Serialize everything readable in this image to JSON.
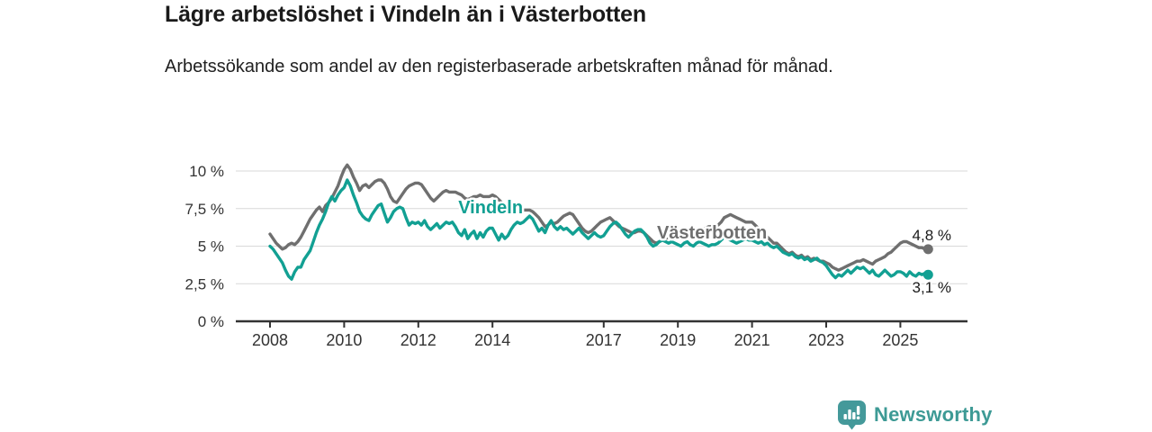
{
  "header": {
    "title": "Lägre arbetslöshet i Vindeln än i Västerbotten",
    "subtitle": "Arbetssökande som andel av den registerbaserade arbetskraften månad för månad."
  },
  "chart_data": {
    "type": "line",
    "title": "Lägre arbetslöshet i Vindeln än i Västerbotten",
    "x_start": "2008-01",
    "x_end": "2025-10",
    "x_frequency": "monthly",
    "x_ticks": [
      2008,
      2010,
      2012,
      2014,
      2017,
      2019,
      2021,
      2023,
      2025
    ],
    "y_ticks": [
      {
        "value": 0,
        "label": "0 %"
      },
      {
        "value": 2.5,
        "label": "2,5 %"
      },
      {
        "value": 5,
        "label": "5 %"
      },
      {
        "value": 7.5,
        "label": "7,5 %"
      },
      {
        "value": 10,
        "label": "10 %"
      }
    ],
    "ylim": [
      0,
      10.8
    ],
    "grid": "horizontal",
    "legend_position": "inline",
    "series": [
      {
        "name": "Västerbotten",
        "color": "#6f6f6f",
        "end_label": "4,8 %",
        "end_label_side": "above",
        "label_anchor": {
          "year": 2019.92,
          "pct": 5.93
        },
        "values": [
          5.8,
          5.5,
          5.2,
          5.0,
          4.8,
          4.9,
          5.1,
          5.2,
          5.1,
          5.3,
          5.6,
          6.0,
          6.4,
          6.8,
          7.1,
          7.4,
          7.6,
          7.3,
          7.7,
          7.9,
          8.2,
          8.6,
          9.0,
          9.6,
          10.1,
          10.4,
          10.1,
          9.6,
          9.2,
          8.7,
          9.0,
          9.1,
          8.9,
          9.1,
          9.3,
          9.4,
          9.4,
          9.2,
          8.8,
          8.3,
          8.0,
          7.9,
          8.2,
          8.5,
          8.8,
          9.0,
          9.1,
          9.2,
          9.2,
          9.1,
          8.8,
          8.5,
          8.2,
          8.0,
          8.2,
          8.4,
          8.6,
          8.7,
          8.6,
          8.6,
          8.6,
          8.5,
          8.4,
          8.2,
          8.1,
          8.2,
          8.3,
          8.3,
          8.4,
          8.3,
          8.3,
          8.3,
          8.4,
          8.3,
          8.1,
          7.9,
          7.7,
          7.5,
          7.4,
          7.4,
          7.3,
          7.3,
          7.4,
          7.4,
          7.4,
          7.3,
          7.1,
          6.9,
          6.6,
          6.3,
          6.4,
          6.6,
          6.5,
          6.6,
          6.8,
          7.0,
          7.1,
          7.2,
          7.1,
          6.8,
          6.5,
          6.2,
          6.0,
          5.9,
          6.0,
          6.2,
          6.4,
          6.6,
          6.7,
          6.8,
          6.9,
          6.7,
          6.5,
          6.3,
          6.2,
          6.1,
          6.0,
          5.9,
          5.9,
          6.0,
          6.0,
          5.9,
          5.7,
          5.5,
          5.3,
          5.2,
          5.3,
          5.4,
          5.5,
          5.6,
          5.7,
          5.8,
          5.9,
          6.0,
          6.0,
          5.9,
          5.8,
          5.8,
          5.9,
          6.0,
          6.1,
          6.2,
          6.3,
          6.3,
          6.3,
          6.4,
          6.6,
          6.9,
          7.0,
          7.1,
          7.0,
          6.9,
          6.8,
          6.7,
          6.6,
          6.6,
          6.6,
          6.4,
          6.2,
          6.0,
          5.8,
          5.6,
          5.4,
          5.2,
          5.2,
          5.0,
          4.8,
          4.6,
          4.5,
          4.6,
          4.4,
          4.3,
          4.4,
          4.2,
          4.3,
          4.1,
          4.2,
          4.1,
          4.0,
          4.0,
          3.9,
          3.8,
          3.6,
          3.5,
          3.4,
          3.5,
          3.6,
          3.7,
          3.8,
          3.9,
          4.0,
          4.0,
          4.1,
          4.0,
          3.9,
          3.8,
          4.0,
          4.1,
          4.2,
          4.3,
          4.5,
          4.6,
          4.8,
          5.0,
          5.2,
          5.3,
          5.3,
          5.2,
          5.1,
          5.0,
          4.9,
          4.9,
          4.8,
          4.8
        ]
      },
      {
        "name": "Vindeln",
        "color": "#12a093",
        "end_label": "3,1 %",
        "end_label_side": "below",
        "label_anchor": {
          "year": 2013.95,
          "pct": 7.6
        },
        "values": [
          5.0,
          4.8,
          4.5,
          4.2,
          3.9,
          3.4,
          3.0,
          2.8,
          3.3,
          3.6,
          3.6,
          4.1,
          4.4,
          4.7,
          5.3,
          5.9,
          6.4,
          6.8,
          7.3,
          7.9,
          8.3,
          8.0,
          8.4,
          8.7,
          8.9,
          9.4,
          9.0,
          8.4,
          7.9,
          7.3,
          7.0,
          6.8,
          6.7,
          7.1,
          7.4,
          7.7,
          7.8,
          7.2,
          6.6,
          6.9,
          7.3,
          7.5,
          7.6,
          7.5,
          6.9,
          6.4,
          6.6,
          6.5,
          6.6,
          6.4,
          6.7,
          6.3,
          6.1,
          6.3,
          6.5,
          6.2,
          6.4,
          6.6,
          6.5,
          6.6,
          6.3,
          5.9,
          5.7,
          6.1,
          5.5,
          5.8,
          6.0,
          5.5,
          5.9,
          5.6,
          6.0,
          6.2,
          6.2,
          5.8,
          5.4,
          5.8,
          5.5,
          5.7,
          6.1,
          6.4,
          6.6,
          6.5,
          6.6,
          6.8,
          7.0,
          6.8,
          6.4,
          6.0,
          6.2,
          5.9,
          6.4,
          6.7,
          6.3,
          6.1,
          6.3,
          6.1,
          6.2,
          6.0,
          5.8,
          6.0,
          6.2,
          5.9,
          5.7,
          5.5,
          5.7,
          5.9,
          5.7,
          5.6,
          5.7,
          6.0,
          6.3,
          6.5,
          6.6,
          6.4,
          6.1,
          5.8,
          5.6,
          5.8,
          6.0,
          6.1,
          6.1,
          5.9,
          5.6,
          5.2,
          5.0,
          5.1,
          5.3,
          5.4,
          5.3,
          5.2,
          5.3,
          5.2,
          5.1,
          5.0,
          5.2,
          5.3,
          5.1,
          5.0,
          5.2,
          5.3,
          5.2,
          5.1,
          5.0,
          5.1,
          5.1,
          5.2,
          5.4,
          5.6,
          5.5,
          5.4,
          5.3,
          5.2,
          5.3,
          5.4,
          5.5,
          5.4,
          5.4,
          5.3,
          5.2,
          5.3,
          5.1,
          5.2,
          5.0,
          4.9,
          5.0,
          4.8,
          4.6,
          4.5,
          4.4,
          4.5,
          4.3,
          4.2,
          4.3,
          4.1,
          4.2,
          4.0,
          4.1,
          4.2,
          4.0,
          3.9,
          3.7,
          3.4,
          3.1,
          2.9,
          3.1,
          3.0,
          3.2,
          3.4,
          3.2,
          3.4,
          3.6,
          3.5,
          3.6,
          3.4,
          3.2,
          3.4,
          3.1,
          3.0,
          3.2,
          3.4,
          3.2,
          3.0,
          3.1,
          3.3,
          3.3,
          3.2,
          3.0,
          3.3,
          3.1,
          3.0,
          3.2,
          3.1,
          3.2,
          3.1
        ]
      }
    ],
    "colors": {
      "axis": "#333333",
      "gridline": "#d9d9d9"
    }
  },
  "branding": {
    "logo_text": "Newsworthy",
    "logo_color": "#3d9a95"
  }
}
